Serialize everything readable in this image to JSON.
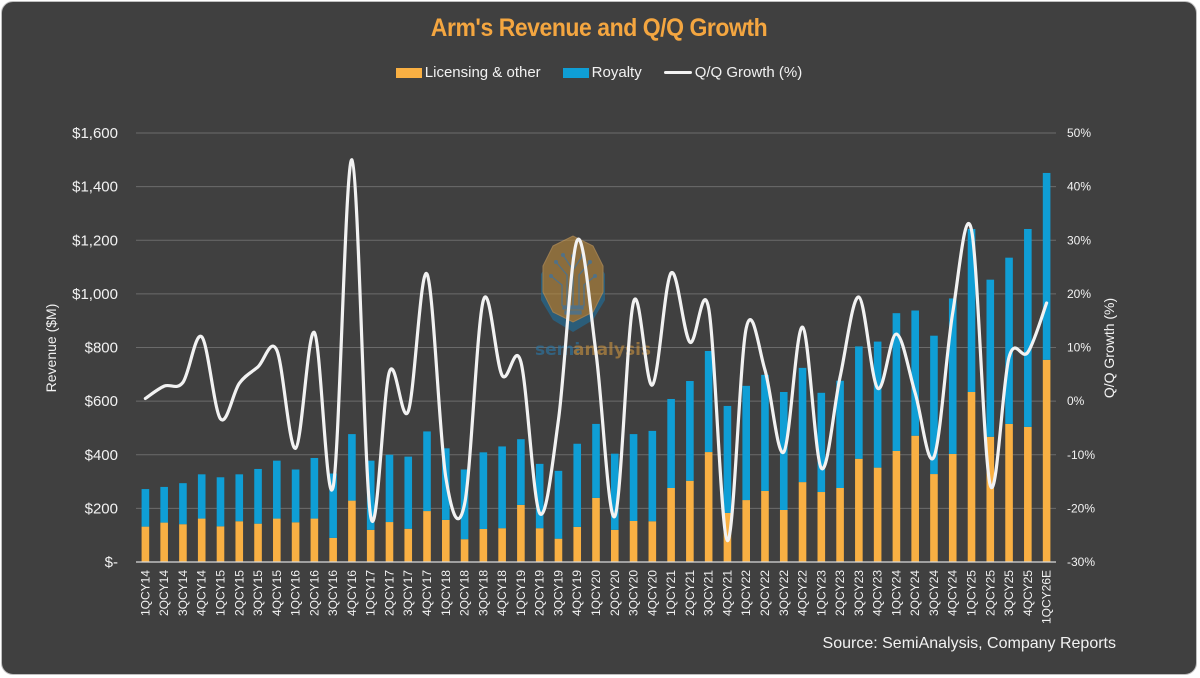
{
  "chart_data": {
    "type": "bar",
    "subtype": "stacked-bar-with-line",
    "title": "Arm's Revenue and Q/Q Growth",
    "legend": {
      "placement": "top-center",
      "items": [
        {
          "label": "Licensing & other",
          "type": "bar",
          "color": "#F9B043"
        },
        {
          "label": "Royalty",
          "type": "bar",
          "color": "#0F9ED5"
        },
        {
          "label": "Q/Q Growth (%)",
          "type": "line",
          "color": "#F2F2F2"
        }
      ]
    },
    "ylabel": "Revenue ($M)",
    "y2label": "Q/Q Growth (%)",
    "xlabel": "",
    "ylim": [
      0,
      1600
    ],
    "y2lim": [
      -30,
      50
    ],
    "yticks": [
      "$-",
      "$200",
      "$400",
      "$600",
      "$800",
      "$1,000",
      "$1,200",
      "$1,400",
      "$1,600"
    ],
    "y2ticks": [
      "-30%",
      "-20%",
      "-10%",
      "0%",
      "10%",
      "20%",
      "30%",
      "40%",
      "50%"
    ],
    "grid": true,
    "categories": [
      "1QCY14",
      "2QCY14",
      "3QCY14",
      "4QCY14",
      "1QCY15",
      "2QCY15",
      "3QCY15",
      "4QCY15",
      "1QCY16",
      "2QCY16",
      "3QCY16",
      "4QCY16",
      "1QCY17",
      "2QCY17",
      "3QCY17",
      "4QCY17",
      "1QCY18",
      "2QCY18",
      "3QCY18",
      "4QCY18",
      "1QCY19",
      "2QCY19",
      "3QCY19",
      "4QCY19",
      "1QCY20",
      "2QCY20",
      "3QCY20",
      "4QCY20",
      "1QCY21",
      "2QCY21",
      "3QCY21",
      "4QCY21",
      "1QCY22",
      "2QCY22",
      "3QCY22",
      "4QCY22",
      "1QCY23",
      "2QCY23",
      "3QCY23",
      "4QCY23",
      "1QCY24",
      "2QCY24",
      "3QCY24",
      "4QCY24",
      "1QCY25",
      "2QCY25",
      "3QCY25",
      "4QCY25",
      "1QCY26E"
    ],
    "series": [
      {
        "name": "Licensing & other",
        "type": "bar",
        "axis": "left",
        "color": "#F9B043",
        "values": [
          132,
          147,
          141,
          162,
          133,
          152,
          143,
          162,
          148,
          162,
          90,
          229,
          120,
          149,
          124,
          190,
          157,
          85,
          123,
          126,
          213,
          126,
          87,
          131,
          239,
          120,
          153,
          152,
          276,
          303,
          410,
          183,
          231,
          265,
          194,
          298,
          261,
          276,
          385,
          352,
          414,
          471,
          328,
          403,
          634,
          467,
          515,
          504,
          754
        ]
      },
      {
        "name": "Royalty",
        "type": "bar",
        "axis": "left",
        "color": "#0F9ED5",
        "values": [
          140,
          133,
          153,
          165,
          183,
          175,
          204,
          216,
          197,
          226,
          240,
          248,
          258,
          251,
          269,
          297,
          267,
          260,
          286,
          305,
          245,
          240,
          253,
          310,
          276,
          284,
          324,
          337,
          332,
          372,
          377,
          399,
          426,
          433,
          440,
          426,
          370,
          400,
          419,
          470,
          514,
          467,
          516,
          580,
          608,
          586,
          620,
          738,
          697
        ]
      },
      {
        "name": "Q/Q Growth (%)",
        "type": "line",
        "axis": "right",
        "color": "#F2F2F2",
        "values": [
          0.5,
          2.8,
          3.5,
          12.0,
          -3.3,
          3.3,
          6.4,
          9.5,
          -8.8,
          12.8,
          -16.0,
          45.0,
          -21.5,
          5.5,
          -1.9,
          23.7,
          -14.2,
          -19.2,
          18.8,
          4.8,
          7.3,
          -20.9,
          -3.5,
          30.0,
          9.0,
          -21.5,
          18.5,
          3.0,
          23.9,
          11.0,
          17.3,
          -26.0,
          13.6,
          5.8,
          -9.5,
          13.8,
          -12.5,
          4.5,
          19.4,
          2.4,
          12.5,
          1.5,
          -10.4,
          16.5,
          31.9,
          -15.7,
          8.2,
          9.1,
          18.3
        ]
      }
    ],
    "source": "Source: SemiAnalysis, Company Reports",
    "watermark": {
      "text_primary": "semi",
      "text_secondary": "analysis"
    }
  }
}
